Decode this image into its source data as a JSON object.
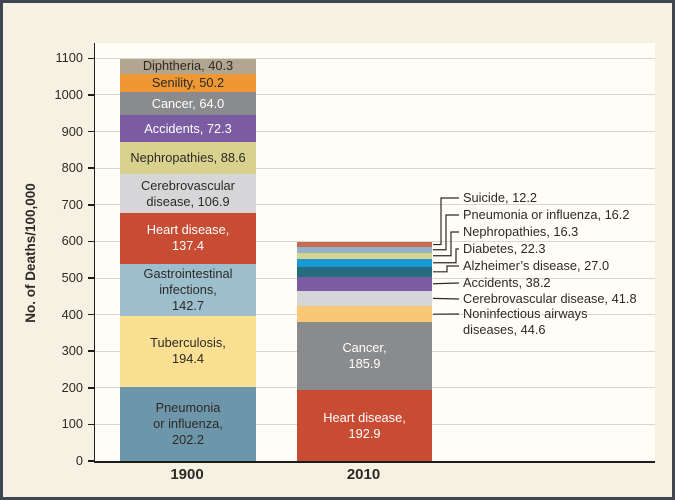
{
  "figure": {
    "background": "#f6f2e3",
    "plot_background": "#fffdf6",
    "border_color": "#3e4751",
    "grid_color": "#d9d8d0",
    "axis_color": "#1d1d1b",
    "text_color": "#2d2a26"
  },
  "chart_data": {
    "type": "bar",
    "stacked": true,
    "title": "",
    "xlabel": "",
    "ylabel": "No. of Deaths/100,000",
    "ylim": [
      0,
      1142
    ],
    "y_ticks": [
      0,
      100,
      200,
      300,
      400,
      500,
      600,
      700,
      800,
      900,
      1000,
      1100
    ],
    "grid": true,
    "categories": [
      "1900",
      "2010"
    ],
    "bars": [
      {
        "category": "1900",
        "total": 1099.0,
        "segments": [
          {
            "name": "Pneumonia or influenza",
            "value": 202.2,
            "color": "#6e96ab",
            "label_lines": [
              "Pneumonia",
              "or influenza,",
              "202.2"
            ],
            "label_style": "dark",
            "label_placement": "inside"
          },
          {
            "name": "Tuberculosis",
            "value": 194.4,
            "color": "#fbe093",
            "label_lines": [
              "Tuberculosis,",
              "194.4"
            ],
            "label_style": "dark",
            "label_placement": "inside"
          },
          {
            "name": "Gastrointestinal infections",
            "value": 142.7,
            "color": "#9dbecd",
            "label_lines": [
              "Gastrointestinal",
              "infections,",
              "142.7"
            ],
            "label_style": "dark",
            "label_placement": "inside"
          },
          {
            "name": "Heart disease",
            "value": 137.4,
            "color": "#c84b33",
            "label_lines": [
              "Heart disease,",
              "137.4"
            ],
            "label_style": "light",
            "label_placement": "inside"
          },
          {
            "name": "Cerebrovascular disease",
            "value": 106.9,
            "color": "#d6d6d8",
            "label_lines": [
              "Cerebrovascular",
              "disease, 106.9"
            ],
            "label_style": "dark",
            "label_placement": "inside"
          },
          {
            "name": "Nephropathies",
            "value": 88.6,
            "color": "#d9d28e",
            "label_lines": [
              "Nephropathies, 88.6"
            ],
            "label_style": "dark",
            "label_placement": "inside"
          },
          {
            "name": "Accidents",
            "value": 72.3,
            "color": "#7b5ba1",
            "label_lines": [
              "Accidents, 72.3"
            ],
            "label_style": "light",
            "label_placement": "inside"
          },
          {
            "name": "Cancer",
            "value": 64.0,
            "color": "#8a8b8d",
            "label_lines": [
              "Cancer, 64.0"
            ],
            "label_style": "light",
            "label_placement": "inside"
          },
          {
            "name": "Senility",
            "value": 50.2,
            "color": "#ef9734",
            "label_lines": [
              "Senility, 50.2"
            ],
            "label_style": "dark",
            "label_placement": "inside"
          },
          {
            "name": "Diphtheria",
            "value": 40.3,
            "color": "#b3a691",
            "label_lines": [
              "Diphtheria, 40.3"
            ],
            "label_style": "dark",
            "label_placement": "inside"
          }
        ]
      },
      {
        "category": "2010",
        "total": 597.4,
        "segments": [
          {
            "name": "Heart disease",
            "value": 192.9,
            "color": "#c84b33",
            "label_lines": [
              "Heart disease,",
              "192.9"
            ],
            "label_style": "light",
            "label_placement": "inside"
          },
          {
            "name": "Cancer",
            "value": 185.9,
            "color": "#8a8b8d",
            "label_lines": [
              "Cancer,",
              "185.9"
            ],
            "label_style": "light",
            "label_placement": "inside"
          },
          {
            "name": "Noninfectious airways diseases",
            "value": 44.6,
            "color": "#f9c877",
            "label_lines": [
              "Noninfectious airways",
              "diseases, 44.6"
            ],
            "label_style": "dark",
            "label_placement": "callout"
          },
          {
            "name": "Cerebrovascular disease",
            "value": 41.8,
            "color": "#d6d6d8",
            "label_lines": [
              "Cerebrovascular disease, 41.8"
            ],
            "label_style": "dark",
            "label_placement": "callout"
          },
          {
            "name": "Accidents",
            "value": 38.2,
            "color": "#7b5ba1",
            "label_lines": [
              "Accidents, 38.2"
            ],
            "label_style": "dark",
            "label_placement": "callout"
          },
          {
            "name": "Alzheimer’s disease",
            "value": 27.0,
            "color": "#266c81",
            "label_lines": [
              "Alzheimer’s disease, 27.0"
            ],
            "label_style": "dark",
            "label_placement": "callout"
          },
          {
            "name": "Diabetes",
            "value": 22.3,
            "color": "#1799d3",
            "label_lines": [
              "Diabetes, 22.3"
            ],
            "label_style": "dark",
            "label_placement": "callout"
          },
          {
            "name": "Nephropathies",
            "value": 16.3,
            "color": "#d9d28e",
            "label_lines": [
              "Nephropathies, 16.3"
            ],
            "label_style": "dark",
            "label_placement": "callout"
          },
          {
            "name": "Pneumonia or influenza",
            "value": 16.2,
            "color": "#92b4c6",
            "label_lines": [
              "Pneumonia or influenza, 16.2"
            ],
            "label_style": "dark",
            "label_placement": "callout"
          },
          {
            "name": "Suicide",
            "value": 12.2,
            "color": "#c76a55",
            "label_lines": [
              "Suicide, 12.2"
            ],
            "label_style": "dark",
            "label_placement": "callout"
          }
        ]
      }
    ]
  }
}
